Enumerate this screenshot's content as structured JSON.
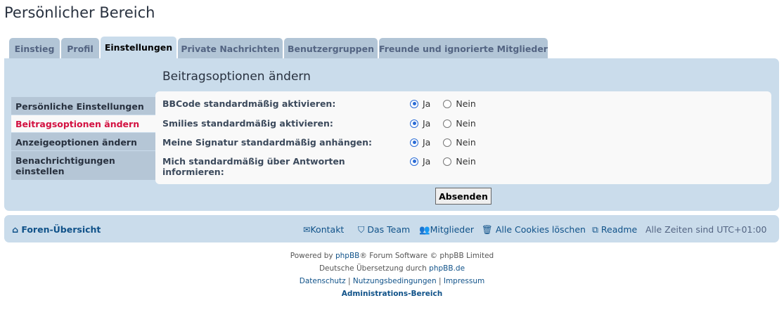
{
  "page_title": "Persönlicher Bereich",
  "tabs": [
    {
      "label": "Einstieg"
    },
    {
      "label": "Profil"
    },
    {
      "label": "Einstellungen"
    },
    {
      "label": "Private Nachrichten"
    },
    {
      "label": "Benutzergruppen"
    },
    {
      "label": "Freunde und ignorierte Mitglieder"
    }
  ],
  "active_tab": "Einstellungen",
  "sidebar": {
    "items": [
      {
        "label": "Persönliche Einstellungen"
      },
      {
        "label": "Beitragsoptionen ändern"
      },
      {
        "label": "Anzeigeoptionen ändern"
      },
      {
        "label": "Benachrichtigungen einstellen"
      }
    ],
    "active": "Beitragsoptionen ändern"
  },
  "section_heading": "Beitragsoptionen ändern",
  "options": [
    {
      "label": "BBCode standardmäßig aktivieren:",
      "value": "Ja"
    },
    {
      "label": "Smilies standardmäßig aktivieren:",
      "value": "Ja"
    },
    {
      "label": "Meine Signatur standardmäßig anhängen:",
      "value": "Ja"
    },
    {
      "label": "Mich standardmäßig über Antworten informieren:",
      "value": "Ja"
    }
  ],
  "yes_label": "Ja",
  "no_label": "Nein",
  "submit_label": "Absenden",
  "footer_nav": {
    "home": "Foren-Übersicht",
    "contact": "Kontakt",
    "team": "Das Team",
    "members": "Mitglieder",
    "cookies": "Alle Cookies löschen",
    "readme": "Readme",
    "timezone": "Alle Zeiten sind UTC+01:00"
  },
  "copyright": {
    "powered_by": "Powered by",
    "phpbb": "phpBB",
    "software": "® Forum Software © phpBB Limited",
    "translation": "Deutsche Übersetzung durch",
    "phpbb_de": "phpBB.de",
    "privacy": "Datenschutz",
    "terms": "Nutzungsbedingungen",
    "imprint": "Impressum",
    "sep": "|",
    "acp": "Administrations-Bereich"
  },
  "colors": {
    "panel": "#cadceb",
    "link": "#105289",
    "active_side": "#d31141",
    "radio": "#2b6cd6"
  }
}
